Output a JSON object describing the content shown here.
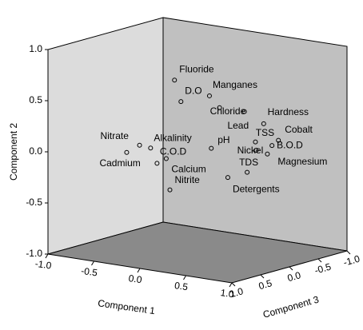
{
  "chart_data": {
    "type": "scatter3d",
    "xlabel": "Component 1",
    "ylabel": "Component 2",
    "zlabel": "Component 3",
    "labels": [
      "Fluoride",
      "D.O",
      "Manganes",
      "Chloride",
      "Hardness",
      "Lead",
      "TSS",
      "Cobalt",
      "B.O.D",
      "Magnesium",
      "Nickel",
      "TDS",
      "Detergents",
      "pH",
      "Nitrate",
      "Alkalinity",
      "Cadmium",
      "C.O.D",
      "Calcium",
      "Nitrite"
    ],
    "x": [
      -0.25,
      -0.18,
      0.13,
      0.24,
      0.51,
      0.63,
      0.72,
      0.88,
      0.81,
      0.76,
      0.64,
      0.54,
      0.33,
      0.15,
      -0.63,
      -0.51,
      -0.77,
      -0.34,
      -0.44,
      -0.3
    ],
    "y": [
      0.65,
      0.45,
      0.55,
      0.45,
      0.45,
      0.17,
      0.36,
      0.22,
      0.16,
      0.07,
      0.09,
      -0.14,
      -0.22,
      0.04,
      -0.04,
      -0.05,
      -0.13,
      -0.13,
      -0.19,
      -0.43
    ],
    "z": [
      0,
      0,
      0,
      0,
      0,
      0,
      0,
      0,
      0,
      0,
      0,
      0,
      0,
      0,
      0,
      0,
      0,
      0,
      0,
      0
    ],
    "xlim": [
      -1,
      1
    ],
    "ylim": [
      -1,
      1
    ],
    "zlim": [
      -1,
      1
    ],
    "xticks": [
      {
        "value": -1,
        "label": "-1.0"
      },
      {
        "value": -0.5,
        "label": "-0.5"
      },
      {
        "value": 0,
        "label": "0.0"
      },
      {
        "value": 0.5,
        "label": "0.5"
      },
      {
        "value": 1,
        "label": "1.0"
      }
    ],
    "yticks": [
      {
        "value": -1,
        "label": "-1.0"
      },
      {
        "value": -0.5,
        "label": "-0.5"
      },
      {
        "value": 0,
        "label": "0.0"
      },
      {
        "value": 0.5,
        "label": "0.5"
      },
      {
        "value": 1,
        "label": "1.0"
      }
    ],
    "zticks": [
      {
        "value": -1,
        "label": "-1.0"
      },
      {
        "value": -0.5,
        "label": "-0.5"
      },
      {
        "value": 0,
        "label": "0.0"
      },
      {
        "value": 0.5,
        "label": "0.5"
      },
      {
        "value": 1,
        "label": "1.0"
      }
    ],
    "left_wall_color": "#dcdcdc",
    "right_wall_color": "#c0c0c0",
    "floor_color": "#8a8a8a",
    "marker_color": "#000000"
  }
}
